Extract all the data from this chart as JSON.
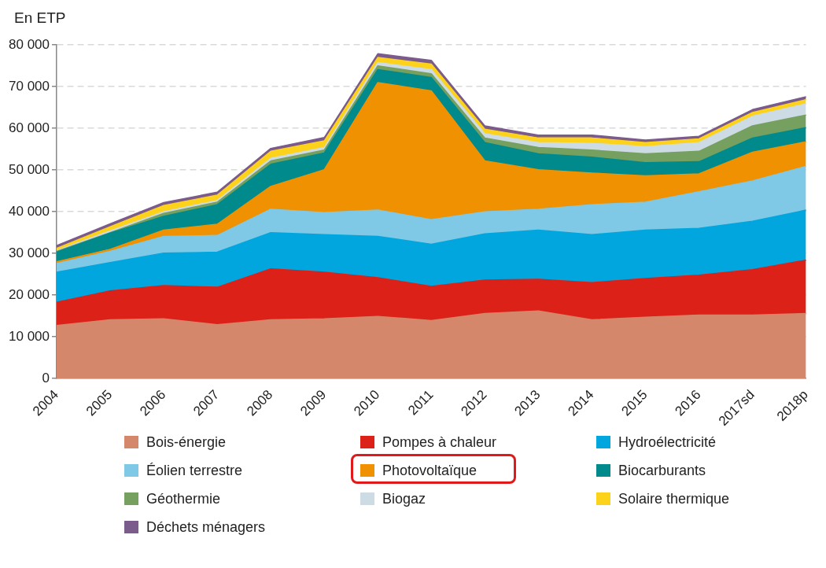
{
  "chart_data": {
    "type": "area",
    "ylabel": "En ETP",
    "stacked": true,
    "legend": "bottom",
    "grid": "y",
    "categories": [
      "2004",
      "2005",
      "2006",
      "2007",
      "2008",
      "2009",
      "2010",
      "2011",
      "2012",
      "2013",
      "2014",
      "2015",
      "2016",
      "2017sd",
      "2018p"
    ],
    "ylim": [
      0,
      80000
    ],
    "yticks": [
      {
        "value": 0,
        "label": "0"
      },
      {
        "value": 10000,
        "label": "10 000"
      },
      {
        "value": 20000,
        "label": "20 000"
      },
      {
        "value": 30000,
        "label": "30 000"
      },
      {
        "value": 40000,
        "label": "40 000"
      },
      {
        "value": 50000,
        "label": "50 000"
      },
      {
        "value": 60000,
        "label": "60 000"
      },
      {
        "value": 70000,
        "label": "70 000"
      },
      {
        "value": 80000,
        "label": "80 000"
      }
    ],
    "series": [
      {
        "name": "Bois-énergie",
        "color": "#d4876b",
        "values": [
          12700,
          14100,
          14300,
          12900,
          14100,
          14300,
          14900,
          13900,
          15600,
          16200,
          14100,
          14700,
          15200,
          15200,
          15600
        ]
      },
      {
        "name": "Pompes à chaleur",
        "color": "#dc2118",
        "values": [
          5600,
          6900,
          8000,
          9000,
          12200,
          11200,
          9300,
          8200,
          8000,
          7600,
          8900,
          9300,
          9600,
          10900,
          12800
        ]
      },
      {
        "name": "Hydroélectricité",
        "color": "#00a6dd",
        "values": [
          7200,
          6800,
          7800,
          8400,
          8700,
          9000,
          9900,
          10100,
          11100,
          11800,
          11500,
          11600,
          11200,
          11600,
          12000
        ]
      },
      {
        "name": "Éolien terrestre",
        "color": "#7fc8e6",
        "values": [
          2100,
          2700,
          4000,
          4000,
          5600,
          5300,
          6300,
          5900,
          5300,
          5000,
          7200,
          6700,
          8800,
          9700,
          10500
        ]
      },
      {
        "name": "Photovoltaïque",
        "color": "#ef9100",
        "values": [
          400,
          500,
          1500,
          2700,
          5500,
          10300,
          30600,
          30900,
          12200,
          9500,
          7600,
          6300,
          4300,
          6900,
          5900
        ]
      },
      {
        "name": "Biocarburants",
        "color": "#008a8c",
        "values": [
          2300,
          3900,
          3300,
          4700,
          5300,
          4000,
          3100,
          3200,
          4400,
          3800,
          3800,
          3200,
          2900,
          3400,
          3400
        ]
      },
      {
        "name": "Géothermie",
        "color": "#76a05f",
        "values": [
          200,
          100,
          700,
          600,
          800,
          700,
          900,
          900,
          1100,
          1500,
          1700,
          2100,
          2500,
          2900,
          3000
        ]
      },
      {
        "name": "Biogaz",
        "color": "#cddce4",
        "values": [
          200,
          400,
          400,
          400,
          600,
          600,
          800,
          1000,
          1000,
          1200,
          1600,
          1700,
          2100,
          2300,
          2700
        ]
      },
      {
        "name": "Solaire thermique",
        "color": "#fcd21b",
        "values": [
          500,
          1000,
          1500,
          1300,
          1700,
          1600,
          1200,
          1300,
          1100,
          1100,
          1300,
          1000,
          900,
          900,
          1000
        ]
      },
      {
        "name": "Déchets ménagers",
        "color": "#7b5a8c",
        "values": [
          700,
          700,
          700,
          700,
          700,
          800,
          900,
          900,
          800,
          700,
          700,
          600,
          600,
          700,
          700
        ]
      }
    ]
  }
}
